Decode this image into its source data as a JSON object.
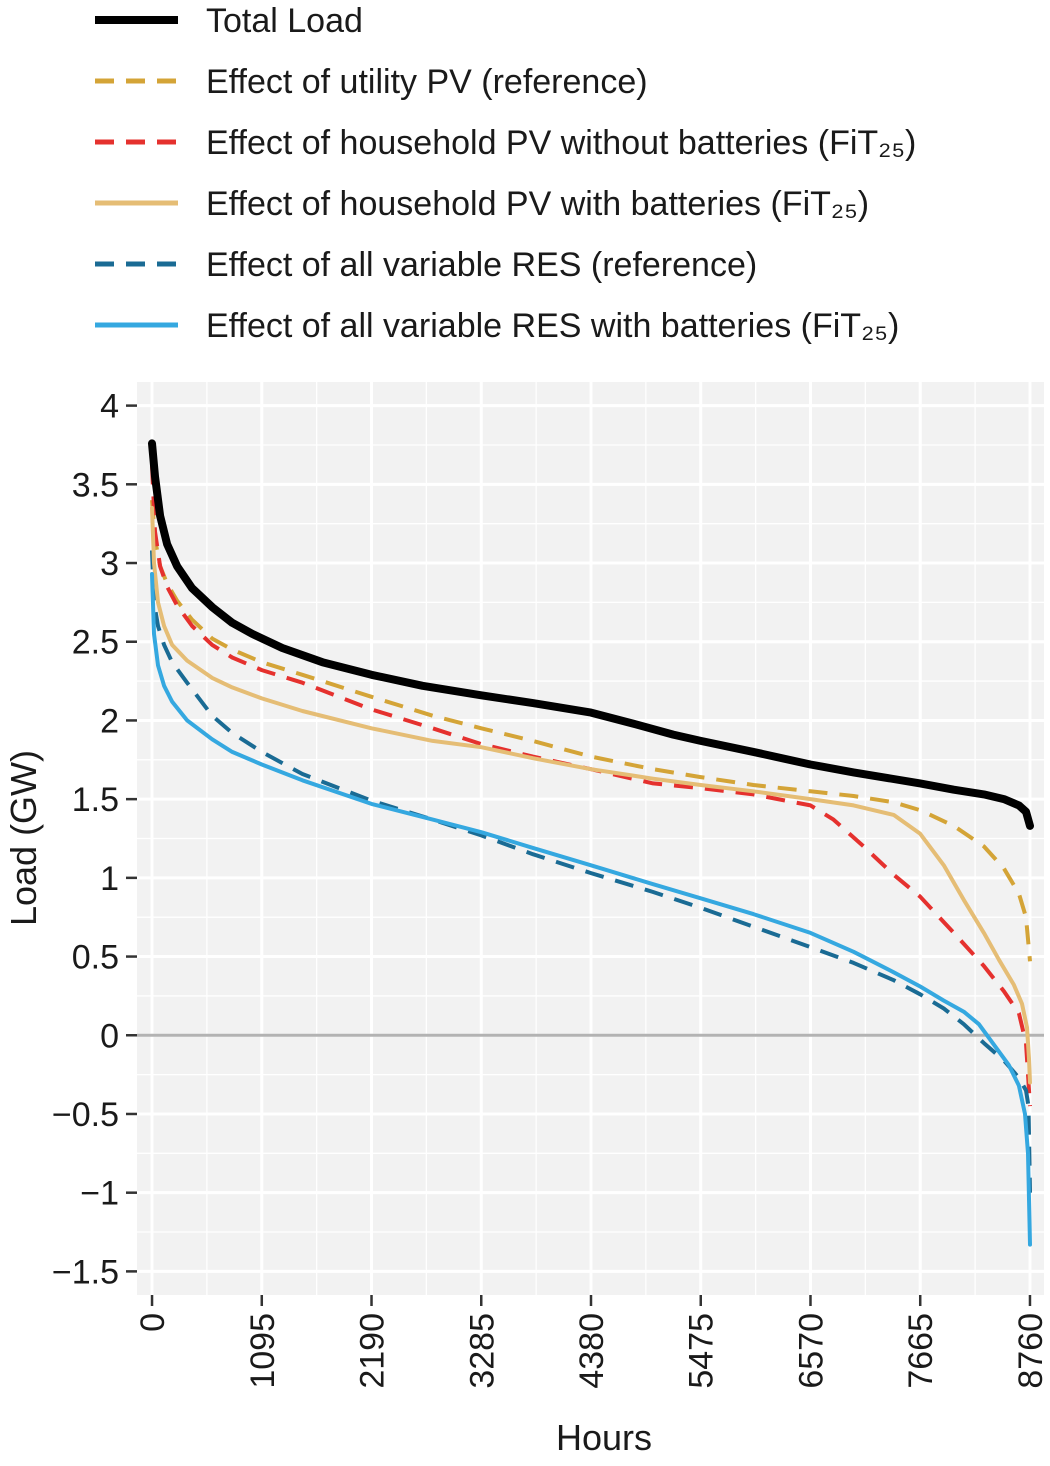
{
  "chart_data": {
    "type": "line",
    "title": "",
    "xlabel": "Hours",
    "ylabel": "Load (GW)",
    "xlim": [
      -150,
      8900
    ],
    "ylim": [
      -1.65,
      4.15
    ],
    "xticks": [
      0,
      1095,
      2190,
      3285,
      4380,
      5475,
      6570,
      7665,
      8760
    ],
    "xtick_labels": [
      "0",
      "1095",
      "2190",
      "3285",
      "4380",
      "5475",
      "6570",
      "7665",
      "8760"
    ],
    "yticks": [
      -1.5,
      -1,
      -0.5,
      0,
      0.5,
      1,
      1.5,
      2,
      2.5,
      3,
      3.5,
      4
    ],
    "ytick_labels": [
      "−1.5",
      "−1",
      "−0.5",
      "0",
      "0.5",
      "1",
      "1.5",
      "2",
      "2.5",
      "3",
      "3.5",
      "4"
    ],
    "grid": true,
    "zero_line": true,
    "legend_position": "top",
    "series": [
      {
        "name": "Total Load",
        "color": "#000000",
        "dash": "solid",
        "points": [
          [
            0,
            3.76
          ],
          [
            30,
            3.55
          ],
          [
            80,
            3.3
          ],
          [
            150,
            3.12
          ],
          [
            250,
            2.98
          ],
          [
            400,
            2.84
          ],
          [
            600,
            2.72
          ],
          [
            800,
            2.62
          ],
          [
            1000,
            2.55
          ],
          [
            1300,
            2.46
          ],
          [
            1700,
            2.37
          ],
          [
            2190,
            2.29
          ],
          [
            2700,
            2.22
          ],
          [
            3285,
            2.16
          ],
          [
            3800,
            2.11
          ],
          [
            4380,
            2.05
          ],
          [
            4800,
            1.98
          ],
          [
            5200,
            1.91
          ],
          [
            5475,
            1.87
          ],
          [
            6000,
            1.8
          ],
          [
            6570,
            1.72
          ],
          [
            7000,
            1.67
          ],
          [
            7665,
            1.6
          ],
          [
            8000,
            1.56
          ],
          [
            8300,
            1.53
          ],
          [
            8500,
            1.5
          ],
          [
            8650,
            1.46
          ],
          [
            8720,
            1.42
          ],
          [
            8760,
            1.33
          ]
        ]
      },
      {
        "name": "Effect of utility PV (reference)",
        "color": "#d4a437",
        "dash": "dashed",
        "points": [
          [
            0,
            3.4
          ],
          [
            30,
            3.15
          ],
          [
            80,
            2.98
          ],
          [
            150,
            2.87
          ],
          [
            250,
            2.76
          ],
          [
            400,
            2.64
          ],
          [
            600,
            2.52
          ],
          [
            800,
            2.45
          ],
          [
            1095,
            2.37
          ],
          [
            1500,
            2.29
          ],
          [
            2190,
            2.15
          ],
          [
            2800,
            2.03
          ],
          [
            3285,
            1.95
          ],
          [
            3800,
            1.87
          ],
          [
            4380,
            1.77
          ],
          [
            5000,
            1.69
          ],
          [
            5475,
            1.64
          ],
          [
            6000,
            1.59
          ],
          [
            6570,
            1.55
          ],
          [
            7000,
            1.52
          ],
          [
            7400,
            1.48
          ],
          [
            7665,
            1.43
          ],
          [
            8000,
            1.33
          ],
          [
            8300,
            1.2
          ],
          [
            8500,
            1.06
          ],
          [
            8650,
            0.9
          ],
          [
            8720,
            0.75
          ],
          [
            8760,
            0.47
          ]
        ]
      },
      {
        "name": "Effect of household PV without batteries (FiT₂₅)",
        "color": "#e5312e",
        "dash": "dashed",
        "points": [
          [
            0,
            3.62
          ],
          [
            30,
            3.2
          ],
          [
            80,
            2.98
          ],
          [
            150,
            2.85
          ],
          [
            250,
            2.73
          ],
          [
            400,
            2.6
          ],
          [
            600,
            2.48
          ],
          [
            800,
            2.4
          ],
          [
            1095,
            2.32
          ],
          [
            1500,
            2.24
          ],
          [
            2190,
            2.07
          ],
          [
            2800,
            1.95
          ],
          [
            3285,
            1.85
          ],
          [
            3800,
            1.77
          ],
          [
            4380,
            1.69
          ],
          [
            5000,
            1.6
          ],
          [
            5475,
            1.57
          ],
          [
            6000,
            1.53
          ],
          [
            6570,
            1.46
          ],
          [
            6800,
            1.37
          ],
          [
            7100,
            1.2
          ],
          [
            7400,
            1.02
          ],
          [
            7665,
            0.88
          ],
          [
            8000,
            0.65
          ],
          [
            8300,
            0.44
          ],
          [
            8500,
            0.28
          ],
          [
            8650,
            0.14
          ],
          [
            8720,
            -0.05
          ],
          [
            8760,
            -0.45
          ]
        ]
      },
      {
        "name": "Effect of household PV with batteries (FiT₂₅)",
        "color": "#e5bd75",
        "dash": "solid",
        "points": [
          [
            0,
            3.35
          ],
          [
            20,
            3.0
          ],
          [
            60,
            2.75
          ],
          [
            120,
            2.6
          ],
          [
            200,
            2.48
          ],
          [
            350,
            2.38
          ],
          [
            600,
            2.27
          ],
          [
            800,
            2.21
          ],
          [
            1095,
            2.14
          ],
          [
            1500,
            2.06
          ],
          [
            2190,
            1.95
          ],
          [
            2800,
            1.87
          ],
          [
            3285,
            1.83
          ],
          [
            3800,
            1.76
          ],
          [
            4380,
            1.69
          ],
          [
            5000,
            1.63
          ],
          [
            5475,
            1.59
          ],
          [
            6000,
            1.55
          ],
          [
            6570,
            1.5
          ],
          [
            7000,
            1.46
          ],
          [
            7400,
            1.4
          ],
          [
            7665,
            1.28
          ],
          [
            7900,
            1.08
          ],
          [
            8100,
            0.86
          ],
          [
            8300,
            0.65
          ],
          [
            8450,
            0.48
          ],
          [
            8600,
            0.32
          ],
          [
            8680,
            0.2
          ],
          [
            8730,
            0.05
          ],
          [
            8750,
            -0.15
          ],
          [
            8760,
            -0.3
          ]
        ]
      },
      {
        "name": "Effect of all variable RES (reference)",
        "color": "#1a6b94",
        "dash": "dashed",
        "points": [
          [
            0,
            3.08
          ],
          [
            20,
            2.75
          ],
          [
            60,
            2.6
          ],
          [
            120,
            2.48
          ],
          [
            200,
            2.37
          ],
          [
            350,
            2.24
          ],
          [
            600,
            2.03
          ],
          [
            800,
            1.92
          ],
          [
            1095,
            1.8
          ],
          [
            1500,
            1.66
          ],
          [
            2190,
            1.49
          ],
          [
            2800,
            1.37
          ],
          [
            3285,
            1.27
          ],
          [
            3800,
            1.15
          ],
          [
            4380,
            1.03
          ],
          [
            5000,
            0.91
          ],
          [
            5475,
            0.81
          ],
          [
            6000,
            0.69
          ],
          [
            6570,
            0.56
          ],
          [
            7000,
            0.46
          ],
          [
            7400,
            0.35
          ],
          [
            7665,
            0.26
          ],
          [
            7900,
            0.17
          ],
          [
            8100,
            0.07
          ],
          [
            8300,
            -0.05
          ],
          [
            8500,
            -0.16
          ],
          [
            8650,
            -0.27
          ],
          [
            8720,
            -0.35
          ],
          [
            8745,
            -0.45
          ],
          [
            8760,
            -1.0
          ]
        ]
      },
      {
        "name": "Effect of all variable RES with batteries (FiT₂₅)",
        "color": "#35a8e0",
        "dash": "solid",
        "points": [
          [
            0,
            2.93
          ],
          [
            20,
            2.55
          ],
          [
            60,
            2.35
          ],
          [
            120,
            2.22
          ],
          [
            200,
            2.12
          ],
          [
            350,
            2.0
          ],
          [
            600,
            1.88
          ],
          [
            800,
            1.8
          ],
          [
            1095,
            1.72
          ],
          [
            1500,
            1.62
          ],
          [
            2190,
            1.47
          ],
          [
            2800,
            1.37
          ],
          [
            3285,
            1.29
          ],
          [
            3800,
            1.19
          ],
          [
            4380,
            1.08
          ],
          [
            5000,
            0.96
          ],
          [
            5475,
            0.87
          ],
          [
            6000,
            0.77
          ],
          [
            6570,
            0.65
          ],
          [
            7000,
            0.53
          ],
          [
            7400,
            0.4
          ],
          [
            7665,
            0.31
          ],
          [
            7900,
            0.22
          ],
          [
            8100,
            0.15
          ],
          [
            8250,
            0.07
          ],
          [
            8400,
            -0.06
          ],
          [
            8550,
            -0.19
          ],
          [
            8650,
            -0.32
          ],
          [
            8710,
            -0.5
          ],
          [
            8740,
            -0.75
          ],
          [
            8760,
            -1.33
          ]
        ]
      }
    ]
  }
}
